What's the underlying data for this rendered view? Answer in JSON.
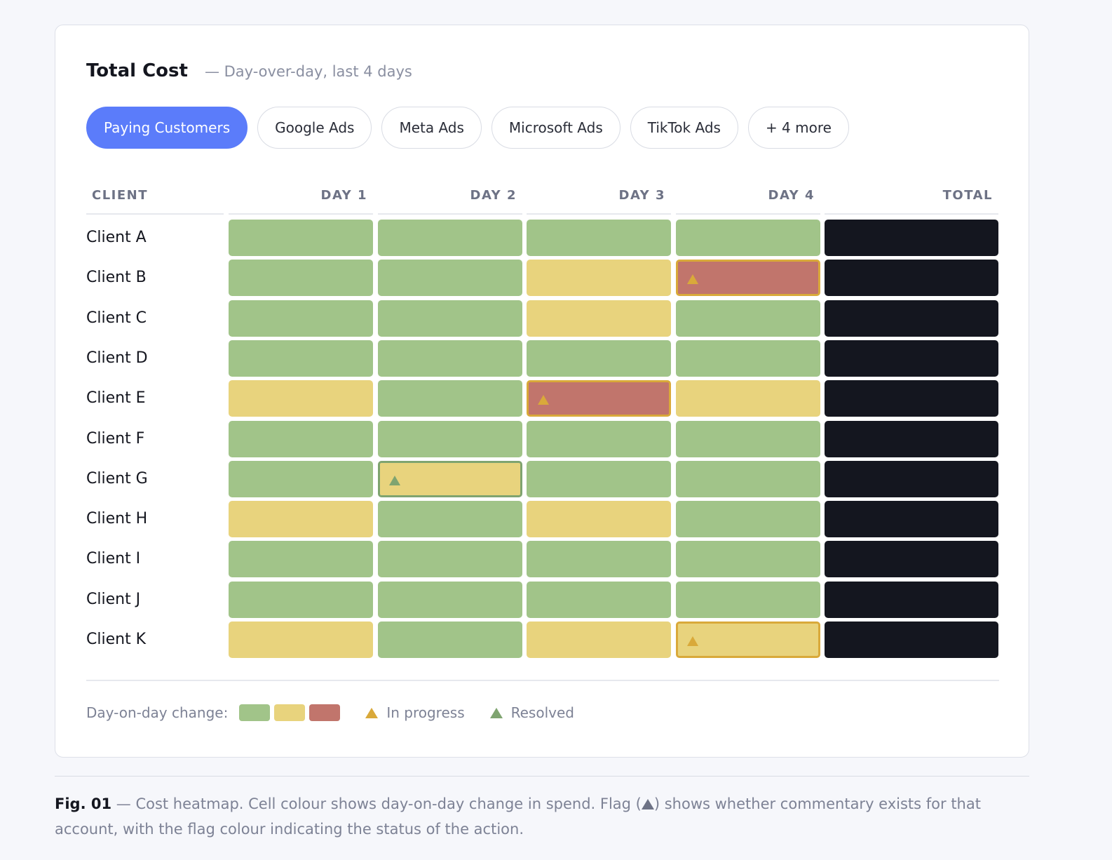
{
  "header": {
    "title": "Total Cost",
    "subtitle": "— Day-over-day, last 4 days"
  },
  "filters": {
    "chips": [
      "Paying Customers",
      "Google Ads",
      "Meta Ads",
      "Microsoft Ads",
      "TikTok Ads",
      "+ 4 more"
    ],
    "active": "Paying Customers"
  },
  "colors": {
    "green": "#a1c489",
    "yellow": "#e8d37d",
    "red": "#c1756c",
    "total": "#14161f",
    "flag_in_progress": "#d9a93a",
    "flag_resolved": "#7fa470",
    "accent": "#5b7cfa"
  },
  "chart_data": {
    "type": "heatmap",
    "columns": [
      "CLIENT",
      "DAY 1",
      "DAY 2",
      "DAY 3",
      "DAY 4",
      "TOTAL"
    ],
    "rows": [
      {
        "client": "Client A",
        "cells": [
          "green",
          "green",
          "green",
          "green"
        ],
        "flags": [
          null,
          null,
          null,
          null
        ]
      },
      {
        "client": "Client B",
        "cells": [
          "green",
          "green",
          "yellow",
          "red"
        ],
        "flags": [
          null,
          null,
          null,
          "in_progress"
        ]
      },
      {
        "client": "Client C",
        "cells": [
          "green",
          "green",
          "yellow",
          "green"
        ],
        "flags": [
          null,
          null,
          null,
          null
        ]
      },
      {
        "client": "Client D",
        "cells": [
          "green",
          "green",
          "green",
          "green"
        ],
        "flags": [
          null,
          null,
          null,
          null
        ]
      },
      {
        "client": "Client E",
        "cells": [
          "yellow",
          "green",
          "red",
          "yellow"
        ],
        "flags": [
          null,
          null,
          "in_progress",
          null
        ]
      },
      {
        "client": "Client F",
        "cells": [
          "green",
          "green",
          "green",
          "green"
        ],
        "flags": [
          null,
          null,
          null,
          null
        ]
      },
      {
        "client": "Client G",
        "cells": [
          "green",
          "yellow",
          "green",
          "green"
        ],
        "flags": [
          null,
          "resolved",
          null,
          null
        ]
      },
      {
        "client": "Client H",
        "cells": [
          "yellow",
          "green",
          "yellow",
          "green"
        ],
        "flags": [
          null,
          null,
          null,
          null
        ]
      },
      {
        "client": "Client I",
        "cells": [
          "green",
          "green",
          "green",
          "green"
        ],
        "flags": [
          null,
          null,
          null,
          null
        ]
      },
      {
        "client": "Client J",
        "cells": [
          "green",
          "green",
          "green",
          "green"
        ],
        "flags": [
          null,
          null,
          null,
          null
        ]
      },
      {
        "client": "Client K",
        "cells": [
          "yellow",
          "green",
          "yellow",
          "yellow"
        ],
        "flags": [
          null,
          null,
          null,
          "in_progress"
        ]
      }
    ],
    "legend": {
      "label": "Day-on-day change:",
      "swatches": [
        "green",
        "yellow",
        "red"
      ],
      "in_progress": "In progress",
      "resolved": "Resolved"
    }
  },
  "caption": {
    "label": "Fig. 01",
    "text_before": " — Cost heatmap. Cell colour shows day-on-day change in spend. Flag (",
    "text_after": ") shows whether commentary exists for that account, with the flag colour indicating the status of the action."
  }
}
